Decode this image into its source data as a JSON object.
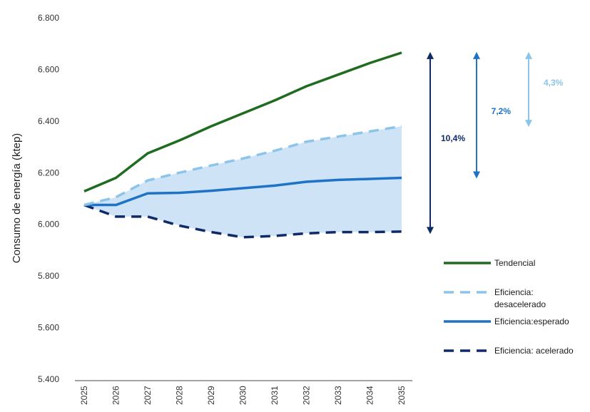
{
  "chart_data": {
    "type": "line",
    "title": "",
    "xlabel": "",
    "ylabel": "Consumo de energía (ktep)",
    "ylim": [
      5400,
      6800
    ],
    "yticks": [
      "5.400",
      "5.600",
      "5.800",
      "6.000",
      "6.200",
      "6.400",
      "6.600",
      "6.800"
    ],
    "x": [
      "2025",
      "2026",
      "2027",
      "2028",
      "2029",
      "2030",
      "2031",
      "2032",
      "2033",
      "2034",
      "2035"
    ],
    "series": [
      {
        "name": "Tendencial",
        "color": "#1f6b1f",
        "dash": "solid",
        "values": [
          6128,
          6180,
          6275,
          6325,
          6380,
          6430,
          6480,
          6535,
          6580,
          6625,
          6665
        ]
      },
      {
        "name": "Eficiencia: desacelerado",
        "color": "#8cc4ea",
        "dash": "dashed",
        "values": [
          6075,
          6105,
          6170,
          6200,
          6228,
          6255,
          6285,
          6320,
          6340,
          6360,
          6380
        ]
      },
      {
        "name": "Eficiencia:esperado",
        "color": "#1f73c6",
        "dash": "solid",
        "values": [
          6075,
          6075,
          6120,
          6122,
          6130,
          6140,
          6150,
          6165,
          6172,
          6176,
          6180
        ]
      },
      {
        "name": "Eficiencia: acelerado",
        "color": "#0f2a66",
        "dash": "dashed",
        "values": [
          6075,
          6030,
          6030,
          5995,
          5970,
          5950,
          5955,
          5965,
          5970,
          5970,
          5972
        ]
      }
    ],
    "band": {
      "between": [
        "Eficiencia: desacelerado",
        "Eficiencia: acelerado"
      ],
      "color": "#cfe3f7"
    },
    "annotations": [
      {
        "label": "10,4%",
        "from": 5965,
        "to": 6665,
        "color": "#0f2a66"
      },
      {
        "label": "7,2%",
        "from": 6180,
        "to": 6665,
        "color": "#1f73c6"
      },
      {
        "label": "4,3%",
        "from": 6380,
        "to": 6665,
        "color": "#8cc4ea"
      }
    ],
    "legend": {
      "placement": "right",
      "entries": [
        {
          "lines": [
            "Tendencial"
          ],
          "color": "#1f6b1f",
          "dash": "solid"
        },
        {
          "lines": [
            "Eficiencia:",
            "desacelerado"
          ],
          "color": "#8cc4ea",
          "dash": "dashed"
        },
        {
          "lines": [
            "Eficiencia:esperado"
          ],
          "color": "#1f73c6",
          "dash": "solid"
        },
        {
          "lines": [
            "Eficiencia: acelerado"
          ],
          "color": "#0f2a66",
          "dash": "dashed"
        }
      ]
    },
    "grid": false
  }
}
